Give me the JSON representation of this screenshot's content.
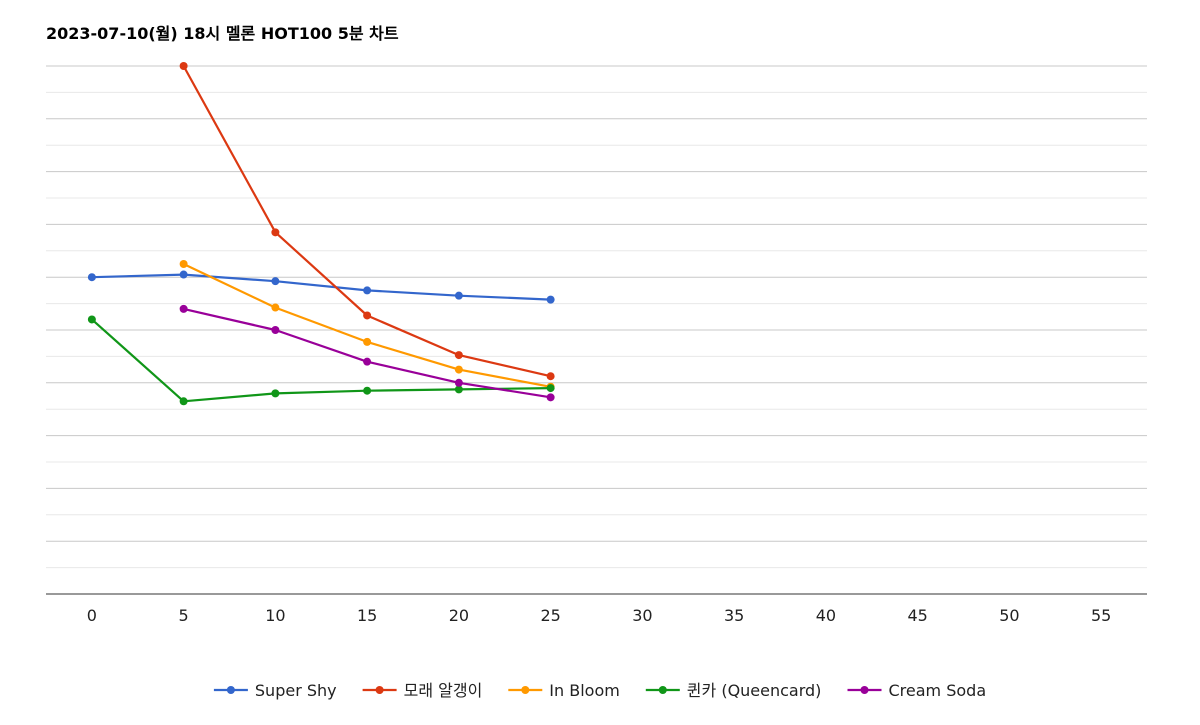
{
  "chart_data": {
    "type": "line",
    "title": "2023-07-10(월) 18시 멜론 HOT100 5분 차트",
    "xlabel": "",
    "ylabel": "",
    "x_ticks": [
      0,
      5,
      10,
      15,
      20,
      25,
      30,
      35,
      40,
      45,
      50,
      55
    ],
    "xlim": [
      -2.5,
      57.5
    ],
    "ylim": [
      0,
      400
    ],
    "y_tick_labels_shown": false,
    "grid": true,
    "legend_position": "bottom",
    "series": [
      {
        "name": "Super Shy",
        "color": "#3366cc",
        "points": [
          [
            0,
            240
          ],
          [
            5,
            242
          ],
          [
            10,
            237
          ],
          [
            15,
            230
          ],
          [
            20,
            226
          ],
          [
            25,
            223
          ]
        ]
      },
      {
        "name": "모래 알갱이",
        "color": "#dc3912",
        "points": [
          [
            5,
            400
          ],
          [
            10,
            274
          ],
          [
            15,
            211
          ],
          [
            20,
            181
          ],
          [
            25,
            165
          ]
        ]
      },
      {
        "name": "In Bloom",
        "color": "#ff9900",
        "points": [
          [
            5,
            250
          ],
          [
            10,
            217
          ],
          [
            15,
            191
          ],
          [
            20,
            170
          ],
          [
            25,
            157
          ]
        ]
      },
      {
        "name": "퀸카 (Queencard)",
        "color": "#109618",
        "points": [
          [
            0,
            208
          ],
          [
            5,
            146
          ],
          [
            10,
            152
          ],
          [
            15,
            154
          ],
          [
            20,
            155
          ],
          [
            25,
            156
          ]
        ]
      },
      {
        "name": "Cream Soda",
        "color": "#990099",
        "points": [
          [
            5,
            216
          ],
          [
            10,
            200
          ],
          [
            15,
            176
          ],
          [
            20,
            160
          ],
          [
            25,
            149
          ]
        ]
      }
    ]
  }
}
